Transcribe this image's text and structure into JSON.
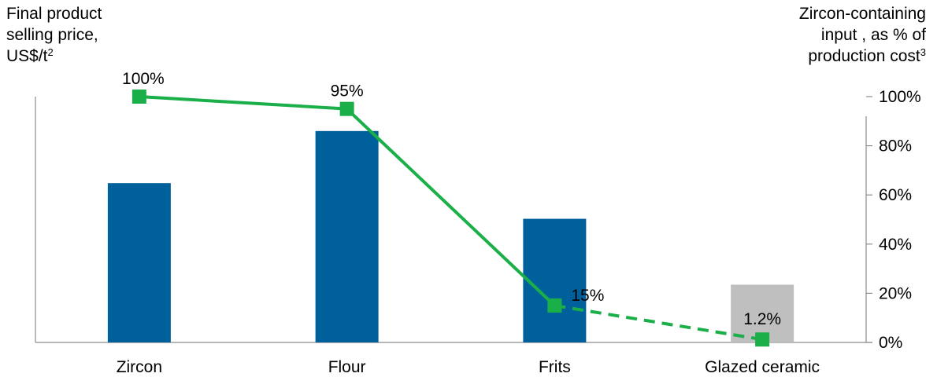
{
  "chart_data": {
    "type": "bar",
    "categories": [
      "Zircon",
      "Flour",
      "Frits",
      "Glazed ceramic"
    ],
    "left_axis_title": {
      "line1": "Final product",
      "line2": "selling price,",
      "line3": "US$/t",
      "sup": "2"
    },
    "right_axis_title": {
      "line1": "Zircon-containing",
      "line2": "input , as % of",
      "line3": "production cost",
      "sup": "3"
    },
    "bar_series": {
      "relative_values": [
        0.648,
        0.86,
        0.503,
        0.235
      ],
      "colors": [
        "#00609c",
        "#00609c",
        "#00609c",
        "#bfbfbf"
      ]
    },
    "line_series": {
      "values": [
        100,
        95,
        15,
        1.2
      ],
      "labels": [
        "100%",
        "95%",
        "15%",
        "1.2%"
      ],
      "color": "#1aaf48",
      "dashed_last_segment": true
    },
    "right_axis": {
      "ticks": [
        "0%",
        "20%",
        "40%",
        "60%",
        "80%",
        "100%"
      ],
      "tick_values": [
        0,
        20,
        40,
        60,
        80,
        100
      ],
      "ylim": [
        0,
        100
      ]
    }
  }
}
